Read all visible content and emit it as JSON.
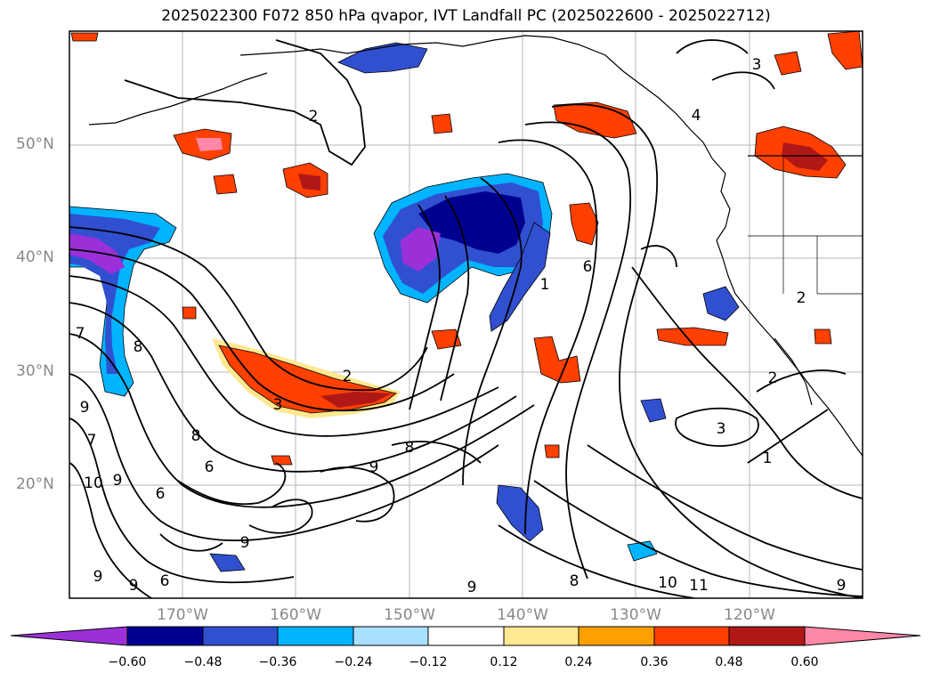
{
  "title": "2025022300 F072 850 hPa qvapor, IVT Landfall PC (2025022600 - 2025022712)",
  "lat_labels": [
    "50°N",
    "40°N",
    "30°N",
    "20°N"
  ],
  "lon_labels": [
    "170°W",
    "160°W",
    "150°W",
    "140°W",
    "130°W",
    "120°W"
  ],
  "colorbar": {
    "ticks": [
      "−0.60",
      "−0.48",
      "−0.36",
      "−0.24",
      "−0.12",
      "0.12",
      "0.24",
      "0.36",
      "0.48",
      "0.60"
    ],
    "colors": [
      "#9b30d9",
      "#000090",
      "#3050d0",
      "#00b4ff",
      "#a8e0ff",
      "#ffffff",
      "#ffe890",
      "#ffa000",
      "#ff4000",
      "#b01818",
      "#ff88a8"
    ]
  },
  "contour_labels": [
    "2",
    "2",
    "3",
    "3",
    "1",
    "4",
    "2",
    "2",
    "3",
    "1",
    "7",
    "8",
    "9",
    "7",
    "10",
    "9",
    "8",
    "9",
    "6",
    "6",
    "9",
    "6",
    "9",
    "9",
    "10",
    "11",
    "9",
    "8",
    "9",
    "6",
    "8"
  ],
  "colors": {
    "frame": "#000000",
    "grid": "#999999",
    "land_outline": "#000000",
    "fill_purple": "#9b30d9",
    "fill_navy": "#000090",
    "fill_blue": "#3050d0",
    "fill_cyan": "#00b4ff",
    "fill_lightblue": "#a8e0ff",
    "fill_yellow": "#ffe890",
    "fill_orange": "#ffa000",
    "fill_redorange": "#ff4000",
    "fill_darkred": "#b01818",
    "fill_pink": "#ff88a8"
  }
}
